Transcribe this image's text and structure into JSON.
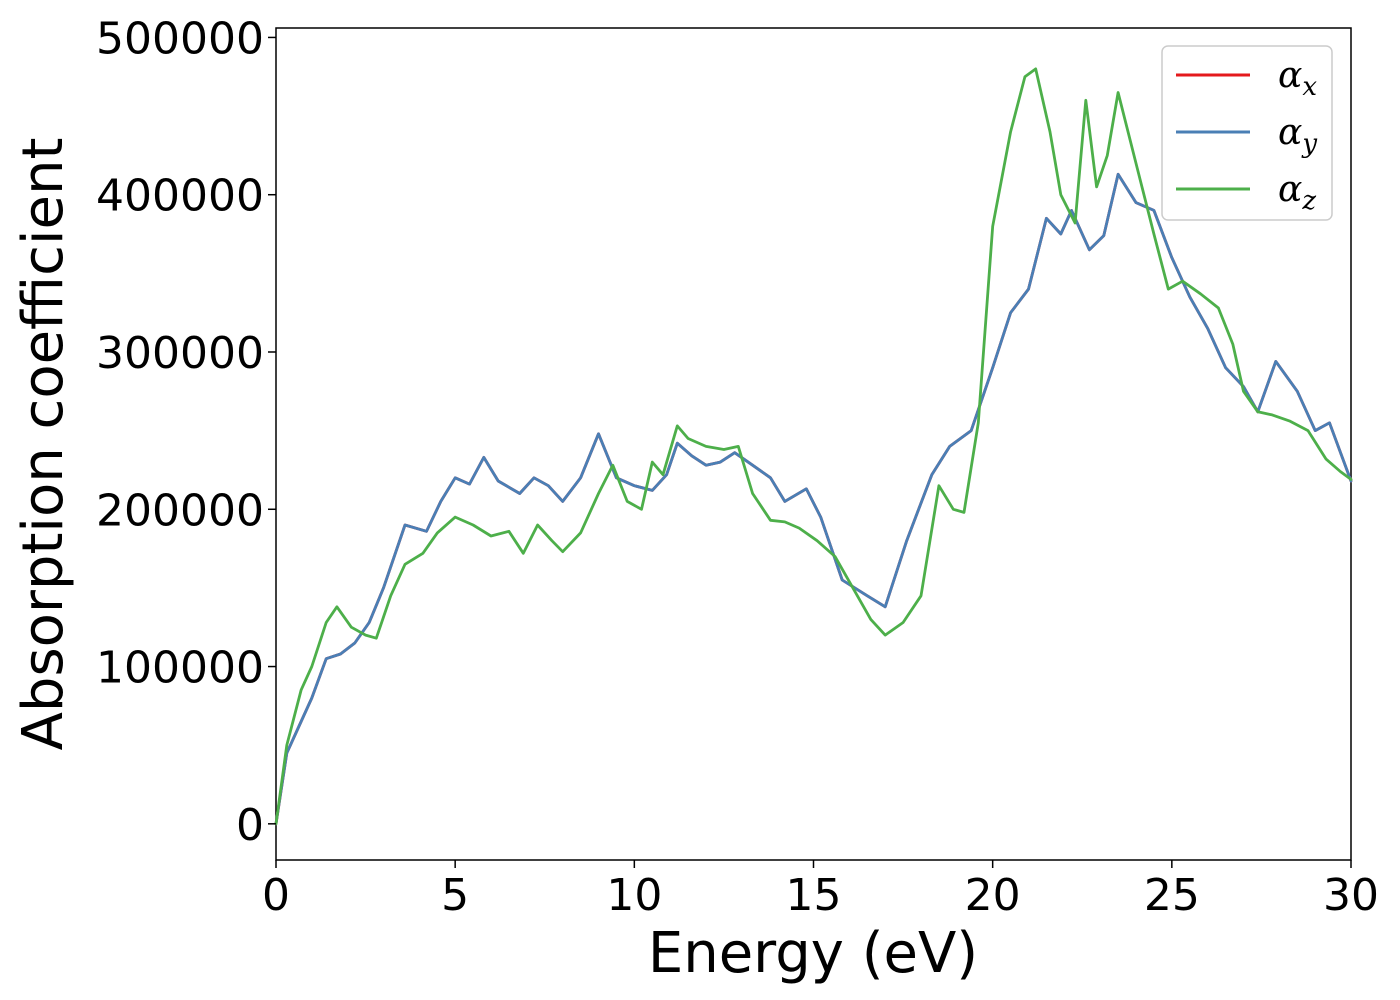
{
  "chart_data": {
    "type": "line",
    "xlabel": "Energy (eV)",
    "ylabel": "Absorption coefficient",
    "xlim": [
      0,
      30
    ],
    "ylim": [
      -23000,
      506000
    ],
    "xticks": [
      0,
      5,
      10,
      15,
      20,
      25,
      30
    ],
    "yticks": [
      0,
      100000,
      200000,
      300000,
      400000,
      500000
    ],
    "grid": false,
    "legend_position": "top-right",
    "series": [
      {
        "name": "α",
        "sub": "x",
        "color": "#e41a1c",
        "x": [
          0,
          0.3,
          0.6,
          1.0,
          1.4,
          1.8,
          2.2,
          2.6,
          3.0,
          3.6,
          4.2,
          4.6,
          5.0,
          5.4,
          5.8,
          6.2,
          6.8,
          7.2,
          7.6,
          8.0,
          8.5,
          9.0,
          9.5,
          10.0,
          10.5,
          10.9,
          11.2,
          11.6,
          12.0,
          12.4,
          12.8,
          13.3,
          13.8,
          14.2,
          14.8,
          15.2,
          15.8,
          16.5,
          17.0,
          17.6,
          18.3,
          18.8,
          19.4,
          20.0,
          20.5,
          21.0,
          21.5,
          21.9,
          22.2,
          22.7,
          23.1,
          23.5,
          24.0,
          24.5,
          25.0,
          25.5,
          26.0,
          26.5,
          27.0,
          27.4,
          27.9,
          28.5,
          29.0,
          29.4,
          30.0
        ],
        "y": [
          0,
          45000,
          60000,
          80000,
          105000,
          108000,
          115000,
          128000,
          150000,
          190000,
          186000,
          205000,
          220000,
          216000,
          233000,
          218000,
          210000,
          220000,
          215000,
          205000,
          220000,
          248000,
          220000,
          215000,
          212000,
          222000,
          242000,
          234000,
          228000,
          230000,
          236000,
          228000,
          220000,
          205000,
          213000,
          195000,
          155000,
          145000,
          138000,
          180000,
          222000,
          240000,
          250000,
          290000,
          325000,
          340000,
          385000,
          375000,
          390000,
          365000,
          374000,
          413000,
          395000,
          390000,
          360000,
          335000,
          315000,
          290000,
          278000,
          262000,
          294000,
          275000,
          250000,
          255000,
          218000
        ]
      },
      {
        "name": "α",
        "sub": "y",
        "color": "#4a7fb5",
        "x": [
          0,
          0.3,
          0.6,
          1.0,
          1.4,
          1.8,
          2.2,
          2.6,
          3.0,
          3.6,
          4.2,
          4.6,
          5.0,
          5.4,
          5.8,
          6.2,
          6.8,
          7.2,
          7.6,
          8.0,
          8.5,
          9.0,
          9.5,
          10.0,
          10.5,
          10.9,
          11.2,
          11.6,
          12.0,
          12.4,
          12.8,
          13.3,
          13.8,
          14.2,
          14.8,
          15.2,
          15.8,
          16.5,
          17.0,
          17.6,
          18.3,
          18.8,
          19.4,
          20.0,
          20.5,
          21.0,
          21.5,
          21.9,
          22.2,
          22.7,
          23.1,
          23.5,
          24.0,
          24.5,
          25.0,
          25.5,
          26.0,
          26.5,
          27.0,
          27.4,
          27.9,
          28.5,
          29.0,
          29.4,
          30.0
        ],
        "y": [
          0,
          45000,
          60000,
          80000,
          105000,
          108000,
          115000,
          128000,
          150000,
          190000,
          186000,
          205000,
          220000,
          216000,
          233000,
          218000,
          210000,
          220000,
          215000,
          205000,
          220000,
          248000,
          220000,
          215000,
          212000,
          222000,
          242000,
          234000,
          228000,
          230000,
          236000,
          228000,
          220000,
          205000,
          213000,
          195000,
          155000,
          145000,
          138000,
          180000,
          222000,
          240000,
          250000,
          290000,
          325000,
          340000,
          385000,
          375000,
          390000,
          365000,
          374000,
          413000,
          395000,
          390000,
          360000,
          335000,
          315000,
          290000,
          278000,
          262000,
          294000,
          275000,
          250000,
          255000,
          218000
        ]
      },
      {
        "name": "α",
        "sub": "z",
        "color": "#4daf4a",
        "x": [
          0,
          0.3,
          0.7,
          1.0,
          1.4,
          1.7,
          2.1,
          2.5,
          2.8,
          3.2,
          3.6,
          4.1,
          4.5,
          5.0,
          5.5,
          6.0,
          6.5,
          6.9,
          7.3,
          7.7,
          8.0,
          8.5,
          9.0,
          9.4,
          9.8,
          10.2,
          10.5,
          10.8,
          11.2,
          11.5,
          12.0,
          12.5,
          12.9,
          13.3,
          13.8,
          14.2,
          14.6,
          15.1,
          15.6,
          16.1,
          16.6,
          17.0,
          17.5,
          18.0,
          18.5,
          18.9,
          19.2,
          19.6,
          20.0,
          20.5,
          20.9,
          21.2,
          21.6,
          21.9,
          22.3,
          22.6,
          22.9,
          23.2,
          23.5,
          24.0,
          24.5,
          24.9,
          25.3,
          25.8,
          26.3,
          26.7,
          27.0,
          27.4,
          27.8,
          28.3,
          28.8,
          29.3,
          29.7,
          30.0
        ],
        "y": [
          0,
          50000,
          85000,
          100000,
          128000,
          138000,
          125000,
          120000,
          118000,
          145000,
          165000,
          172000,
          185000,
          195000,
          190000,
          183000,
          186000,
          172000,
          190000,
          180000,
          173000,
          185000,
          210000,
          228000,
          205000,
          200000,
          230000,
          222000,
          253000,
          245000,
          240000,
          238000,
          240000,
          210000,
          193000,
          192000,
          188000,
          180000,
          170000,
          150000,
          130000,
          120000,
          128000,
          145000,
          215000,
          200000,
          198000,
          255000,
          380000,
          440000,
          475000,
          480000,
          440000,
          400000,
          382000,
          460000,
          405000,
          425000,
          465000,
          420000,
          375000,
          340000,
          345000,
          337000,
          328000,
          305000,
          275000,
          262000,
          260000,
          256000,
          250000,
          232000,
          224000,
          219000
        ]
      }
    ]
  }
}
